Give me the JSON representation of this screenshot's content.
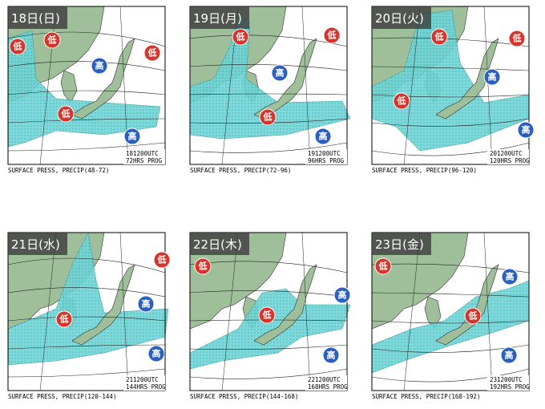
{
  "panels": [
    {
      "date": "18日(日)",
      "stamp": "181200UTC",
      "prog": "72HRS PROG",
      "caption": "SURFACE PRESS, PRECIP(48-72)",
      "systems": [
        "低",
        "低",
        "低",
        "高",
        "低",
        "高"
      ]
    },
    {
      "date": "19日(月)",
      "stamp": "191200UTC",
      "prog": "96HRS PROG",
      "caption": "SURFACE PRESS, PRECIP(72-96)",
      "systems": [
        "低",
        "低",
        "高",
        "低",
        "高"
      ]
    },
    {
      "date": "20日(火)",
      "stamp": "201200UTC",
      "prog": "120HRS PROG",
      "caption": "SURFACE PRESS, PRECIP(96-120)",
      "systems": [
        "低",
        "低",
        "高",
        "低",
        "高"
      ]
    },
    {
      "date": "21日(水)",
      "stamp": "211200UTC",
      "prog": "144HRS PROG",
      "caption": "SURFACE PRESS, PRECIP(120-144)",
      "systems": [
        "低",
        "高",
        "低",
        "高"
      ]
    },
    {
      "date": "22日(木)",
      "stamp": "221200UTC",
      "prog": "168HRS PROG",
      "caption": "SURFACE PRESS, PRECIP(144-168)",
      "systems": [
        "低",
        "高",
        "低",
        "高"
      ]
    },
    {
      "date": "23日(金)",
      "stamp": "231200UTC",
      "prog": "192HRS PROG",
      "caption": "SURFACE PRESS, PRECIP(168-192)",
      "systems": [
        "低",
        "高",
        "低",
        "高"
      ]
    }
  ]
}
